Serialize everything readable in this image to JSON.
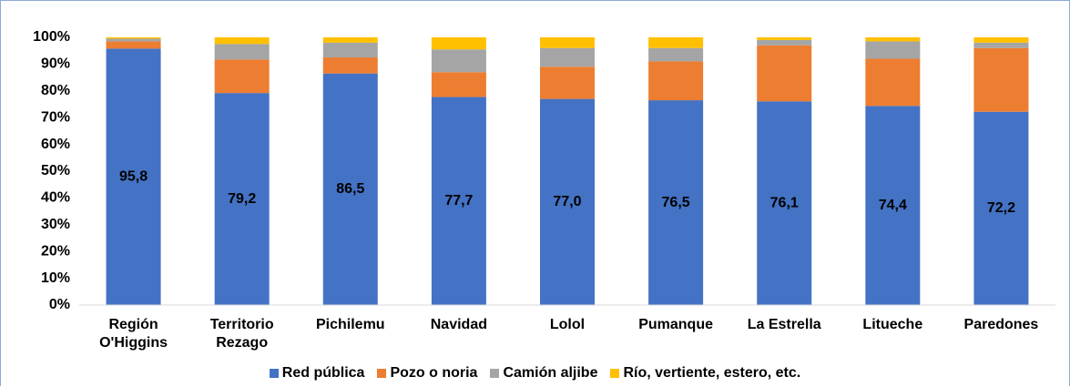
{
  "chart_data": {
    "type": "stacked_bar",
    "categories": [
      "Región O'Higgins",
      "Territorio Rezago",
      "Pichilemu",
      "Navidad",
      "Lolol",
      "Pumanque",
      "La Estrella",
      "Litueche",
      "Paredones"
    ],
    "series": [
      {
        "name": "Red pública",
        "color": "#4472c4",
        "values": [
          95.8,
          79.2,
          86.5,
          77.7,
          77.0,
          76.5,
          76.1,
          74.4,
          72.2
        ],
        "value_labels": [
          "95,8",
          "79,2",
          "86,5",
          "77,7",
          "77,0",
          "76,5",
          "76,1",
          "74,4",
          "72,2"
        ]
      },
      {
        "name": "Pozo o noria",
        "color": "#ed7d31",
        "values": [
          2.7,
          12.5,
          6.0,
          9.3,
          12.0,
          14.5,
          20.9,
          17.6,
          23.8
        ]
      },
      {
        "name": "Camión aljibe",
        "color": "#a5a5a5",
        "values": [
          1.0,
          5.8,
          5.5,
          8.5,
          7.0,
          5.0,
          2.0,
          6.5,
          2.0
        ]
      },
      {
        "name": "Río, vertiente, estero, etc.",
        "color": "#ffc000",
        "values": [
          0.5,
          2.5,
          2.0,
          4.5,
          4.0,
          4.0,
          1.0,
          1.5,
          2.0
        ]
      }
    ],
    "ylim": [
      0,
      100
    ],
    "yticks": [
      {
        "value": 0,
        "label": "0%"
      },
      {
        "value": 10,
        "label": "10%"
      },
      {
        "value": 20,
        "label": "20%"
      },
      {
        "value": 30,
        "label": "30%"
      },
      {
        "value": 40,
        "label": "40%"
      },
      {
        "value": 50,
        "label": "50%"
      },
      {
        "value": 60,
        "label": "60%"
      },
      {
        "value": 70,
        "label": "70%"
      },
      {
        "value": 80,
        "label": "80%"
      },
      {
        "value": 90,
        "label": "90%"
      },
      {
        "value": 100,
        "label": "100%"
      }
    ],
    "grid": false,
    "legend": "bottom"
  }
}
